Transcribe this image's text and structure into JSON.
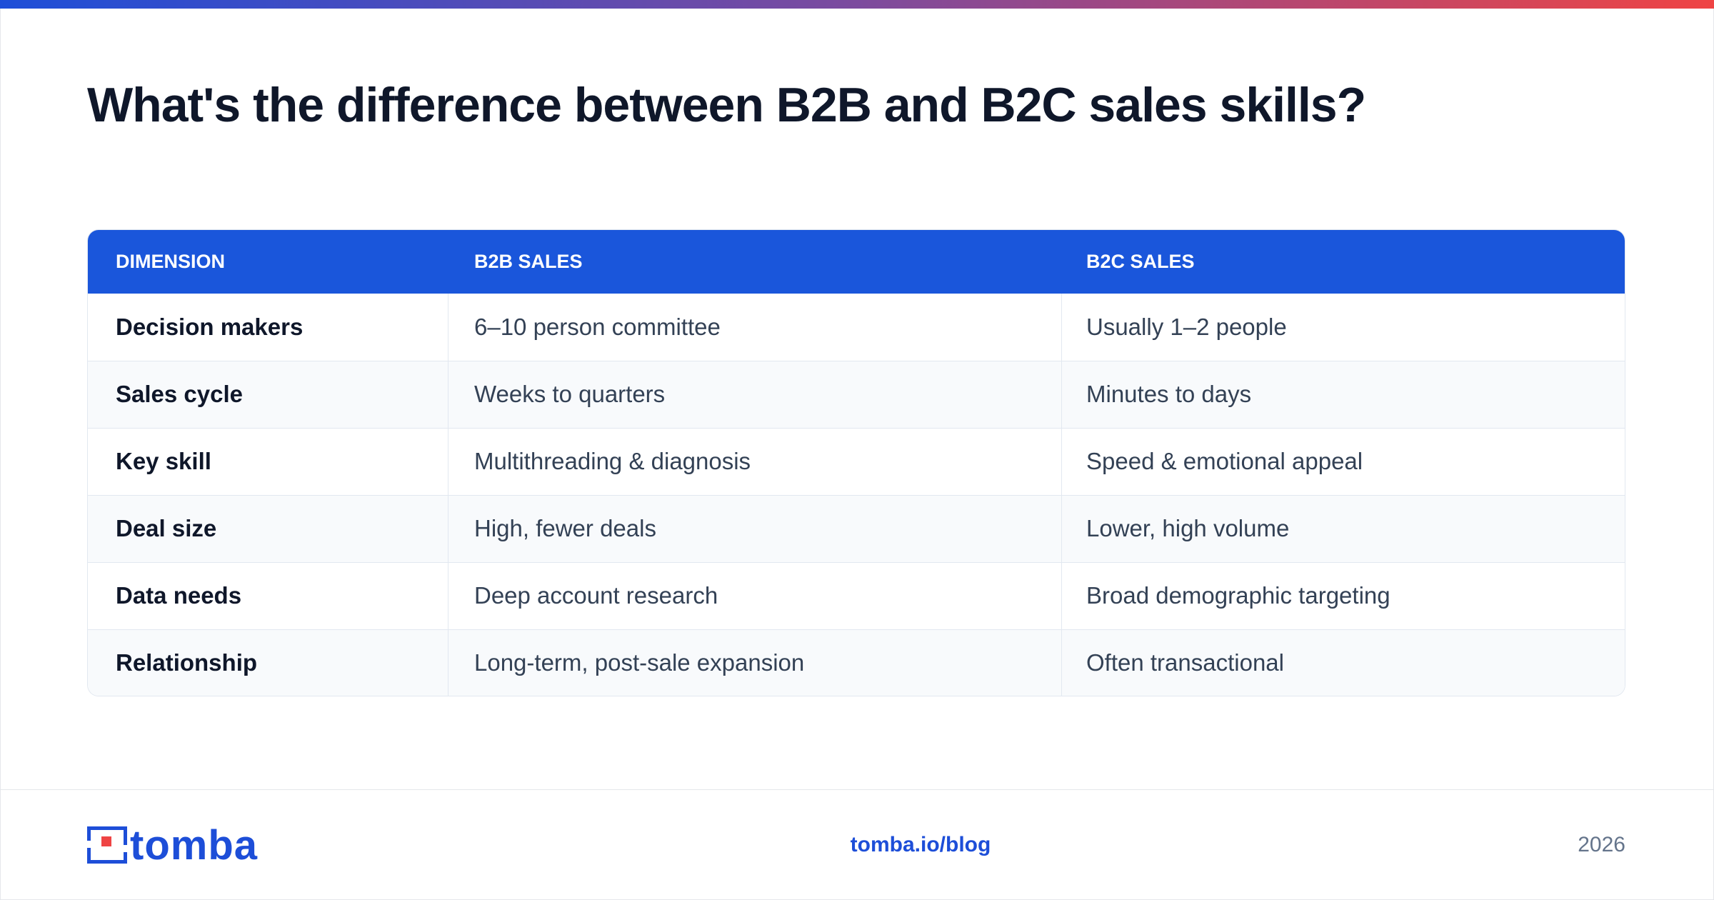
{
  "header": {
    "title": "What's the difference between B2B and B2C sales skills?"
  },
  "table": {
    "columns": [
      "DIMENSION",
      "B2B SALES",
      "B2C SALES"
    ],
    "rows": [
      [
        "Decision makers",
        "6–10 person committee",
        "Usually 1–2 people"
      ],
      [
        "Sales cycle",
        "Weeks to quarters",
        "Minutes to days"
      ],
      [
        "Key skill",
        "Multithreading & diagnosis",
        "Speed & emotional appeal"
      ],
      [
        "Deal size",
        "High, fewer deals",
        "Lower, high volume"
      ],
      [
        "Data needs",
        "Deep account research",
        "Broad demographic targeting"
      ],
      [
        "Relationship",
        "Long-term, post-sale expansion",
        "Often transactional"
      ]
    ]
  },
  "footer": {
    "logo": "tomba",
    "link": "tomba.io/blog",
    "year": "2026"
  }
}
